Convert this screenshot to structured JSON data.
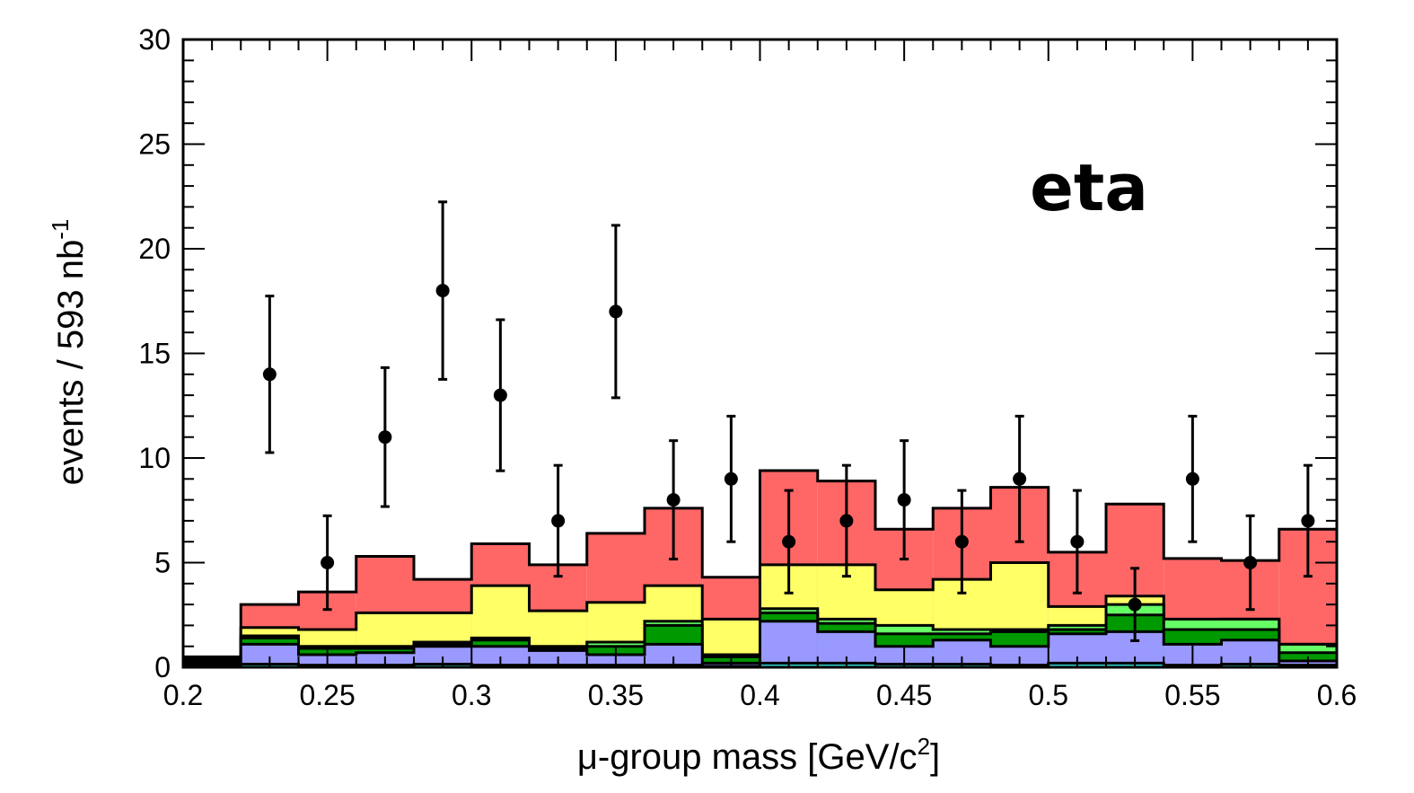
{
  "chart_data": {
    "type": "bar",
    "subtype": "stacked-histogram-with-data-points",
    "xlabel_prefix": "μ-group mass [GeV/c",
    "xlabel_sup": "2",
    "xlabel_suffix": "]",
    "ylabel_prefix": "events / 593 nb",
    "ylabel_sup": "-1",
    "annotation": "eta",
    "xlim": [
      0.2,
      0.6
    ],
    "ylim": [
      0,
      30
    ],
    "x_ticks": [
      0.2,
      0.25,
      0.3,
      0.35,
      0.4,
      0.45,
      0.5,
      0.55,
      0.6
    ],
    "x_tick_labels": [
      "0.2",
      "0.25",
      "0.3",
      "0.35",
      "0.4",
      "0.45",
      "0.5",
      "0.55",
      "0.6"
    ],
    "y_ticks": [
      0,
      5,
      10,
      15,
      20,
      25,
      30
    ],
    "y_tick_labels": [
      "0",
      "5",
      "10",
      "15",
      "20",
      "25",
      "30"
    ],
    "bin_edges": [
      0.2,
      0.22,
      0.24,
      0.26,
      0.28,
      0.3,
      0.32,
      0.34,
      0.36,
      0.38,
      0.4,
      0.42,
      0.44,
      0.46,
      0.48,
      0.5,
      0.52,
      0.54,
      0.56,
      0.58,
      0.6
    ],
    "stack_totals": [
      {
        "color": "#ff6666",
        "values": [
          0.5,
          3.0,
          3.6,
          5.3,
          4.2,
          5.9,
          4.9,
          6.4,
          7.6,
          4.3,
          9.4,
          8.9,
          6.6,
          7.6,
          8.6,
          5.5,
          7.8,
          5.2,
          5.1,
          6.6
        ]
      },
      {
        "color": "#ffff66",
        "values": [
          0.4,
          1.9,
          1.8,
          2.6,
          2.6,
          3.9,
          2.7,
          3.1,
          3.9,
          2.3,
          4.9,
          4.9,
          3.7,
          4.2,
          5.0,
          2.9,
          3.4,
          2.1,
          2.3,
          1.1
        ]
      },
      {
        "color": "#66ff66",
        "values": [
          0.3,
          1.5,
          1.0,
          1.0,
          1.2,
          1.4,
          1.0,
          1.2,
          2.2,
          0.6,
          2.8,
          2.3,
          2.0,
          1.8,
          1.8,
          2.0,
          3.0,
          2.3,
          2.3,
          1.1
        ]
      },
      {
        "color": "#009900",
        "values": [
          0.25,
          1.4,
          0.9,
          0.9,
          1.1,
          1.3,
          0.9,
          1.0,
          2.0,
          0.5,
          2.6,
          2.1,
          1.6,
          1.6,
          1.7,
          1.8,
          2.5,
          1.8,
          1.8,
          0.7
        ]
      },
      {
        "color": "#9999ff",
        "values": [
          0.2,
          1.1,
          0.6,
          0.7,
          1.0,
          1.0,
          0.8,
          0.6,
          1.1,
          0.2,
          2.2,
          1.7,
          1.0,
          1.3,
          1.0,
          1.6,
          1.7,
          1.1,
          1.3,
          0.3
        ]
      },
      {
        "color": "#33cccc",
        "values": [
          0.1,
          0.15,
          0.1,
          0.1,
          0.15,
          0.1,
          0.1,
          0.1,
          0.1,
          0.05,
          0.2,
          0.2,
          0.15,
          0.15,
          0.1,
          0.2,
          0.2,
          0.1,
          0.15,
          0.1
        ]
      }
    ],
    "data_points": {
      "x": [
        0.23,
        0.25,
        0.27,
        0.29,
        0.31,
        0.33,
        0.35,
        0.37,
        0.39,
        0.41,
        0.43,
        0.45,
        0.47,
        0.49,
        0.51,
        0.53,
        0.55,
        0.57,
        0.59
      ],
      "y": [
        14,
        5,
        11,
        18,
        13,
        7,
        17,
        8,
        9,
        6,
        7,
        8,
        6,
        9,
        6,
        3,
        9,
        5,
        7
      ],
      "err_low": [
        3.74,
        2.24,
        3.32,
        4.24,
        3.61,
        2.65,
        4.12,
        2.83,
        3.0,
        2.45,
        2.65,
        2.83,
        2.45,
        3.0,
        2.45,
        1.73,
        3.0,
        2.24,
        2.65
      ],
      "err_high": [
        3.74,
        2.24,
        3.32,
        4.24,
        3.61,
        2.65,
        4.12,
        2.83,
        3.0,
        2.45,
        2.65,
        2.83,
        2.45,
        3.0,
        2.45,
        1.73,
        3.0,
        2.24,
        2.65
      ],
      "color": "#000000"
    },
    "grid": false,
    "legend": "none"
  }
}
